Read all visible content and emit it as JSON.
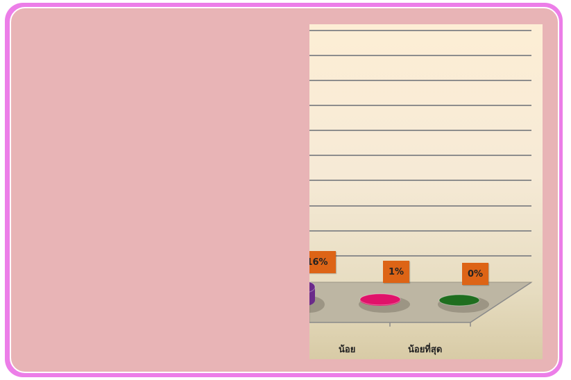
{
  "chart_data": {
    "type": "bar",
    "categories": [
      "",
      "น้อย",
      "น้อยที่สุด"
    ],
    "values": [
      16,
      1,
      0
    ],
    "data_labels": [
      "16%",
      "1%",
      "0%"
    ],
    "value_unit": "%",
    "grid": true,
    "colors": [
      "#6b2a8a",
      "#e0126a",
      "#1f6e1f"
    ],
    "label_box_color": "#dd6416"
  },
  "colors": {
    "outer_border": "#ec7ee8",
    "panel": "#e8b4b6"
  }
}
